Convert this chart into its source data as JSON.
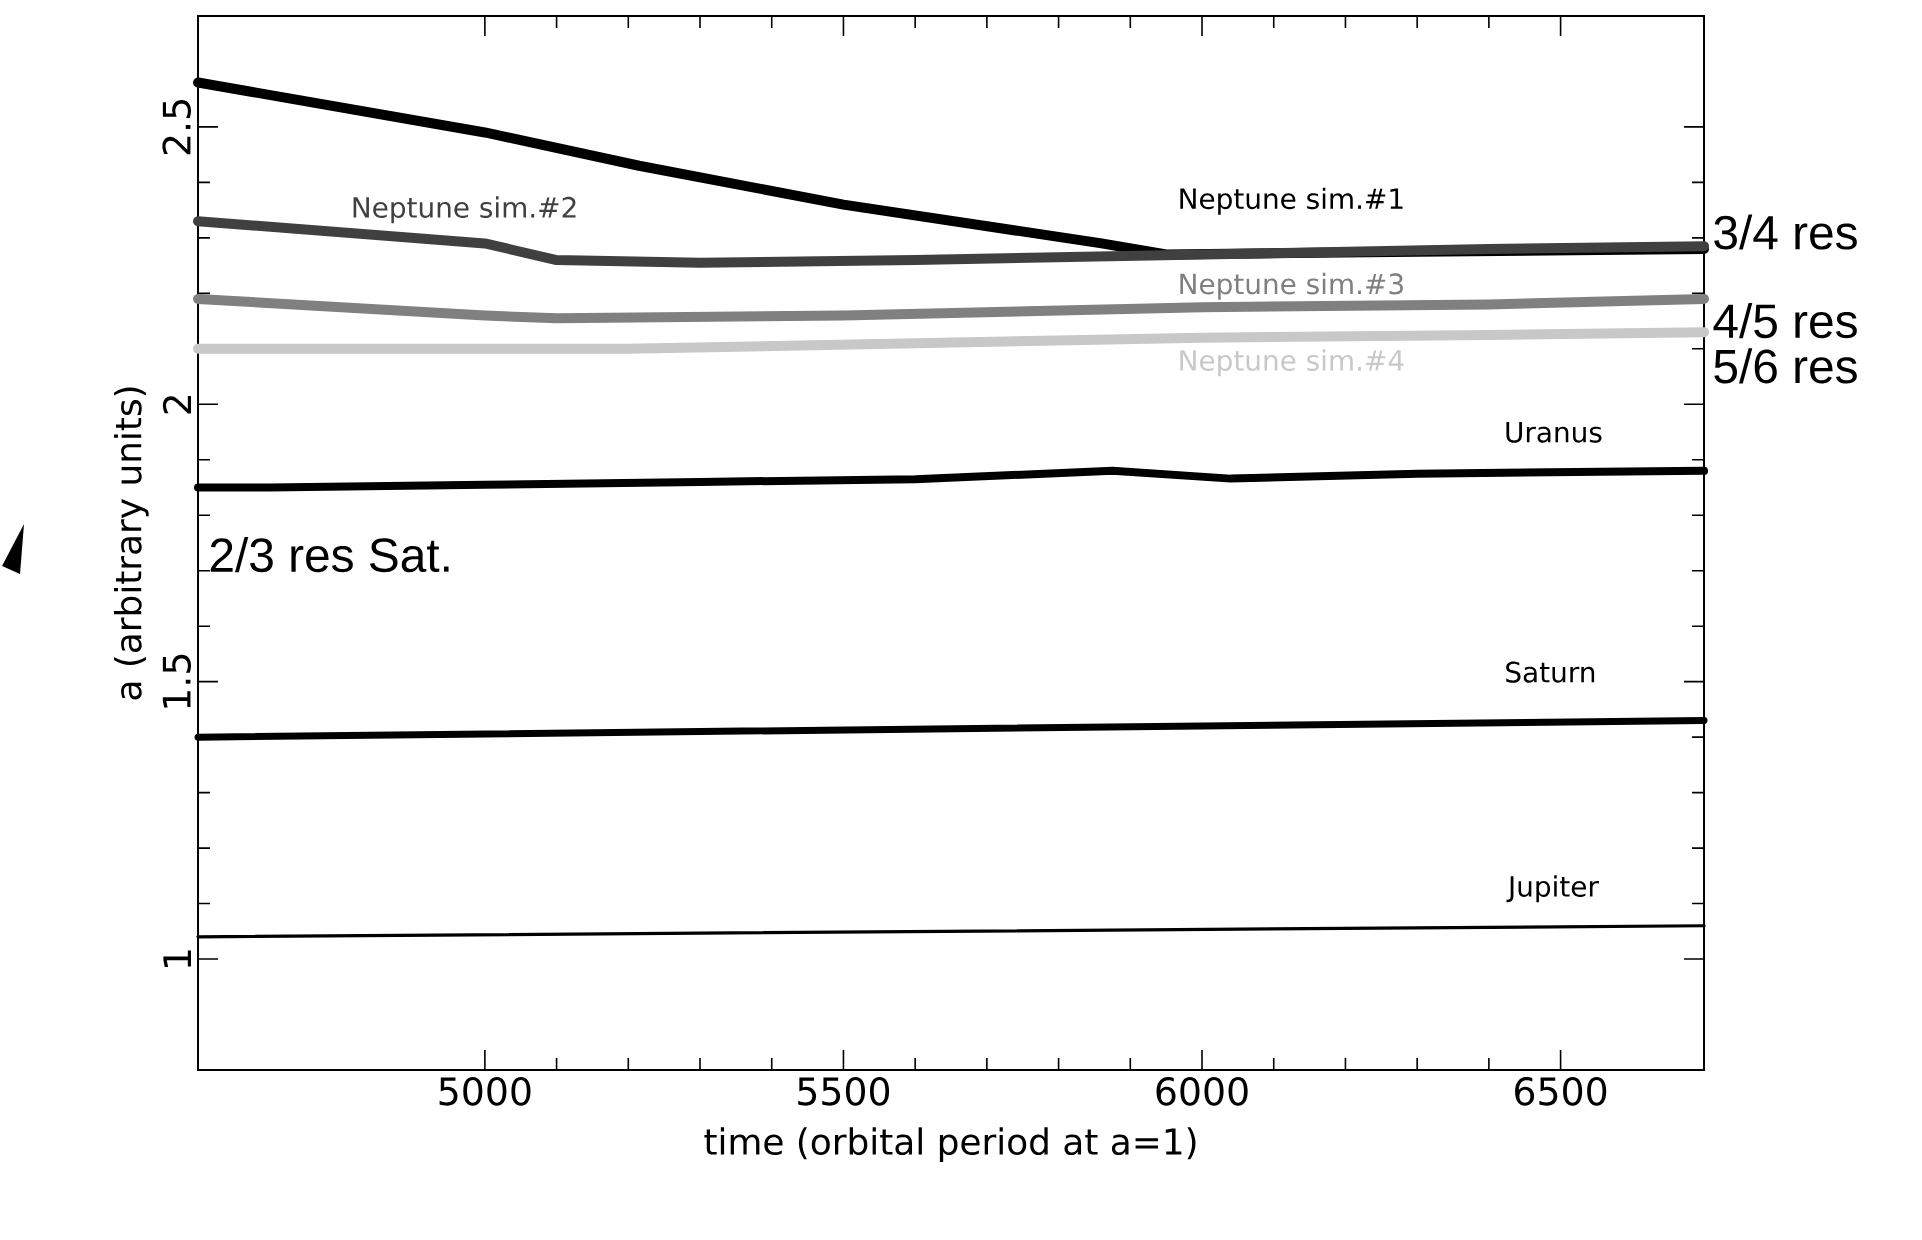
{
  "chart_data": {
    "type": "line",
    "xlabel": "time (orbital period at a=1)",
    "ylabel": "a (arbitrary units)",
    "xlim": [
      4600,
      6700
    ],
    "ylim": [
      0.8,
      2.7
    ],
    "xticks": [
      5000,
      5500,
      6000,
      6500
    ],
    "yticks": [
      1,
      1.5,
      2,
      2.5
    ],
    "series": [
      {
        "name": "Neptune sim.#1",
        "color": "#000000",
        "x": [
          4600,
          5000,
          5215,
          5500,
          5860,
          5950,
          6300,
          6700
        ],
        "values": [
          2.58,
          2.49,
          2.43,
          2.36,
          2.29,
          2.27,
          2.275,
          2.28
        ]
      },
      {
        "name": "Neptune sim.#2",
        "color": "#404040",
        "x": [
          4600,
          5000,
          5100,
          5300,
          5600,
          6000,
          6400,
          6700
        ],
        "values": [
          2.33,
          2.29,
          2.26,
          2.255,
          2.26,
          2.27,
          2.28,
          2.285
        ]
      },
      {
        "name": "Neptune sim.#3",
        "color": "#808080",
        "x": [
          4600,
          5000,
          5100,
          5500,
          6000,
          6400,
          6700
        ],
        "values": [
          2.19,
          2.16,
          2.155,
          2.16,
          2.175,
          2.18,
          2.19
        ]
      },
      {
        "name": "Neptune sim.#4",
        "color": "#c8c8c8",
        "x": [
          4600,
          5000,
          5200,
          5600,
          6000,
          6400,
          6700
        ],
        "values": [
          2.1,
          2.1,
          2.1,
          2.11,
          2.12,
          2.125,
          2.13
        ]
      },
      {
        "name": "Uranus",
        "color": "#000000",
        "x": [
          4600,
          4700,
          5000,
          5300,
          5600,
          5875,
          6040,
          6300,
          6700
        ],
        "values": [
          1.85,
          1.85,
          1.855,
          1.86,
          1.865,
          1.88,
          1.866,
          1.875,
          1.88
        ]
      },
      {
        "name": "Saturn",
        "color": "#000000",
        "x": [
          4600,
          6700
        ],
        "values": [
          1.4,
          1.43
        ]
      },
      {
        "name": "Jupiter",
        "color": "#000000",
        "x": [
          4600,
          6700
        ],
        "values": [
          1.04,
          1.06
        ]
      }
    ],
    "annotations": [
      "3/4 res",
      "4/5 res",
      "5/6 res",
      "2/3 res Sat."
    ]
  }
}
